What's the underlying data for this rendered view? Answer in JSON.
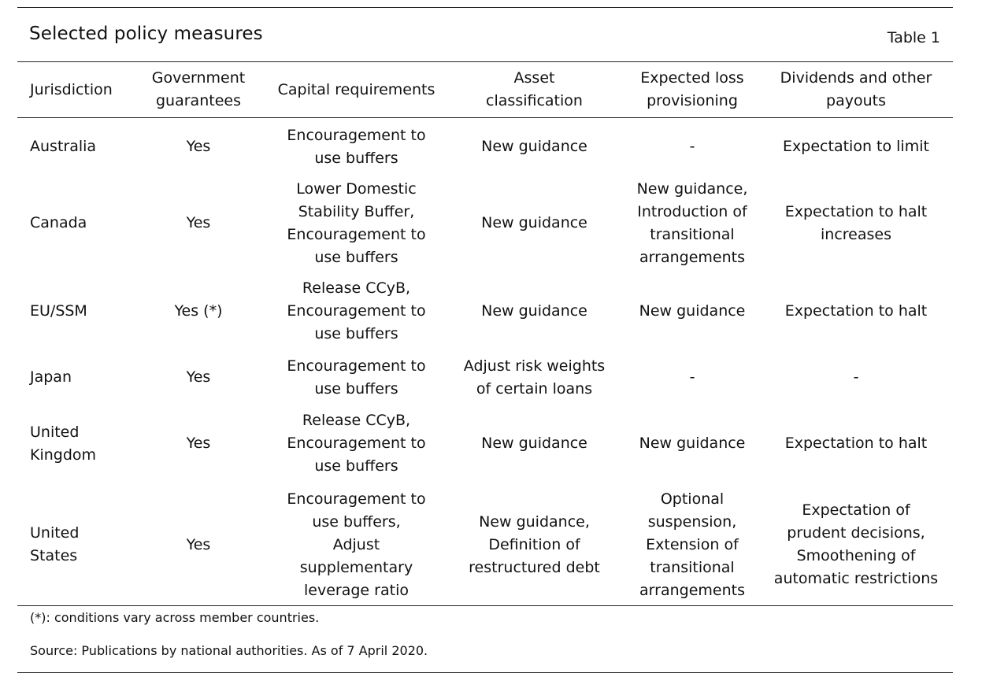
{
  "title": "Selected policy measures",
  "table_number": "Table 1",
  "columns": [
    "Jurisdiction",
    "Government\nguarantees",
    "Capital requirements",
    "Asset\nclassification",
    "Expected loss\nprovisioning",
    "Dividends and other\npayouts"
  ],
  "rows": [
    {
      "jurisdiction": "Australia",
      "guarantees": "Yes",
      "capital": "Encouragement to\nuse buffers",
      "asset": "New guidance",
      "provisioning": "-",
      "dividends": "Expectation to limit"
    },
    {
      "jurisdiction": "Canada",
      "guarantees": "Yes",
      "capital": "Lower Domestic\nStability Buffer,\nEncouragement to\nuse buffers",
      "asset": "New guidance",
      "provisioning": "New guidance,\nIntroduction of\ntransitional\narrangements",
      "dividends": "Expectation to halt\nincreases"
    },
    {
      "jurisdiction": "EU/SSM",
      "guarantees": "Yes (*)",
      "capital": "Release CCyB,\nEncouragement to\nuse buffers",
      "asset": "New guidance",
      "provisioning": "New guidance",
      "dividends": "Expectation to halt"
    },
    {
      "jurisdiction": "Japan",
      "guarantees": "Yes",
      "capital": "Encouragement to\nuse buffers",
      "asset": "Adjust risk weights\nof certain loans",
      "provisioning": "-",
      "dividends": "-"
    },
    {
      "jurisdiction": "United\nKingdom",
      "guarantees": "Yes",
      "capital": "Release CCyB,\nEncouragement to\nuse buffers",
      "asset": "New guidance",
      "provisioning": "New guidance",
      "dividends": "Expectation to halt"
    },
    {
      "jurisdiction": "United\nStates",
      "guarantees": "Yes",
      "capital": "Encouragement to\nuse buffers,\nAdjust\nsupplementary\nleverage ratio",
      "asset": "New guidance,\nDefinition of\nrestructured debt",
      "provisioning": "Optional\nsuspension,\nExtension of\ntransitional\narrangements",
      "dividends": "Expectation of\nprudent decisions,\nSmoothening of\nautomatic restrictions"
    }
  ],
  "footnote": "(*): conditions vary across member countries.",
  "source": "Source: Publications by national authorities. As of 7 April 2020."
}
